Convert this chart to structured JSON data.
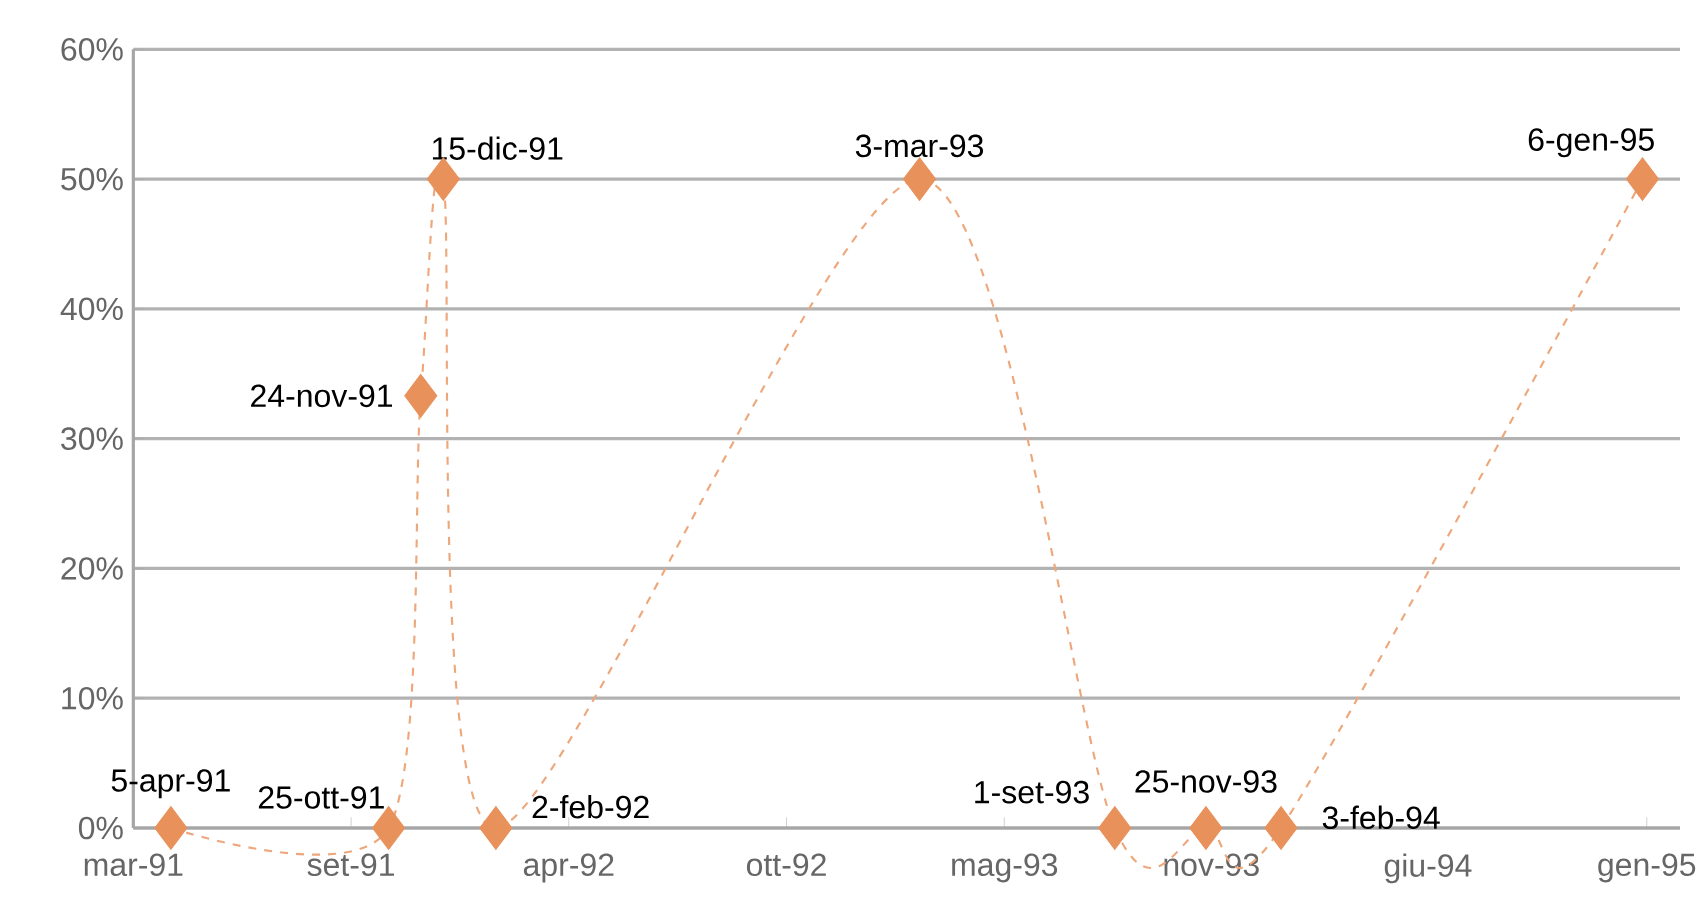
{
  "chart_data": {
    "type": "line",
    "x": [
      "1991-04-05",
      "1991-10-25",
      "1991-11-24",
      "1991-12-15",
      "1992-02-02",
      "1993-03-03",
      "1993-09-01",
      "1993-11-25",
      "1994-02-03",
      "1995-01-06"
    ],
    "series": [
      {
        "color": "#e8915a",
        "values": [
          0,
          0,
          33.3,
          50,
          0,
          50,
          0,
          0,
          0,
          50
        ]
      }
    ],
    "marker": "diamond",
    "line_style": "dashed",
    "xlim": [
      "1991-03-01",
      "1995-02-10"
    ],
    "xticks": [
      {
        "value": "1991-03-01",
        "label": "mar-91"
      },
      {
        "value": "1991-09-20",
        "label": "set-91"
      },
      {
        "value": "1992-04-10",
        "label": "apr-92"
      },
      {
        "value": "1992-10-30",
        "label": "ott-92"
      },
      {
        "value": "1993-05-21",
        "label": "mag-93"
      },
      {
        "value": "1993-11-30",
        "label": "nov-93"
      },
      {
        "value": "1994-06-20",
        "label": "giu-94"
      },
      {
        "value": "1995-01-10",
        "label": "gen-95"
      }
    ],
    "ylim": [
      0,
      60
    ],
    "yticks": [
      {
        "value": 0,
        "label": "0%"
      },
      {
        "value": 10,
        "label": "10%"
      },
      {
        "value": 20,
        "label": "20%"
      },
      {
        "value": 30,
        "label": "30%"
      },
      {
        "value": 40,
        "label": "40%"
      },
      {
        "value": 50,
        "label": "50%"
      },
      {
        "value": 60,
        "label": "60%"
      }
    ],
    "grid": "y",
    "annotations": [
      {
        "text": "5-apr-91",
        "x": "1991-04-05",
        "y": 0
      },
      {
        "text": "25-ott-91",
        "x": "1991-10-25",
        "y": 0
      },
      {
        "text": "24-nov-91",
        "x": "1991-11-24",
        "y": 33.3
      },
      {
        "text": "15-dic-91",
        "x": "1991-12-15",
        "y": 50
      },
      {
        "text": "2-feb-92",
        "x": "1992-02-02",
        "y": 0
      },
      {
        "text": "3-mar-93",
        "x": "1993-03-03",
        "y": 50
      },
      {
        "text": "1-set-93",
        "x": "1993-09-01",
        "y": 0
      },
      {
        "text": "25-nov-93",
        "x": "1993-11-25",
        "y": 0
      },
      {
        "text": "3-feb-94",
        "x": "1994-02-03",
        "y": 0
      },
      {
        "text": "6-gen-95",
        "x": "1995-01-06",
        "y": 50
      }
    ]
  }
}
